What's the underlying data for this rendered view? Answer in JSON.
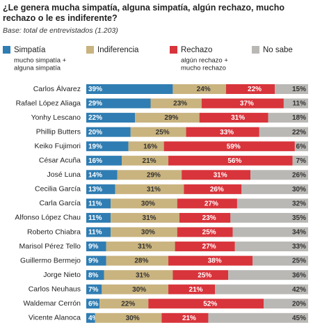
{
  "chart_data": {
    "type": "stacked-bar-horizontal",
    "title": "¿Le genera mucha simpatía, alguna simpatía, algún rechazo, mucho rechazo o le es indiferente?",
    "subtitle": "Base: total de entrevistados (1.203)",
    "categories": [
      "Carlos Álvarez",
      "Rafael López Aliaga",
      "Yonhy Lescano",
      "Phillip Butters",
      "Keiko Fujimori",
      "César Acuña",
      "José Luna",
      "Cecilia García",
      "Carla García",
      "Alfonso López Chau",
      "Roberto Chiabra",
      "Marisol Pérez Tello",
      "Guillermo Bermejo",
      "Jorge Nieto",
      "Carlos Neuhaus",
      "Waldemar Cerrón",
      "Vicente Alanoca"
    ],
    "xlim": [
      0,
      100
    ],
    "series": [
      {
        "name": "Simpatía",
        "note": [
          "mucho simpatía +",
          "alguna simpatía"
        ],
        "color": "#2f7db3",
        "values": [
          39,
          29,
          22,
          20,
          19,
          16,
          14,
          13,
          11,
          11,
          11,
          9,
          9,
          8,
          7,
          6,
          4
        ],
        "value_labels": [
          "39%",
          "29%",
          "22%",
          "20%",
          "19%",
          "16%",
          "14%",
          "13%",
          "11%",
          "11%",
          "11%",
          "9%",
          "9%",
          "8%",
          "7%",
          "6%",
          "4%"
        ]
      },
      {
        "name": "Indiferencia",
        "color": "#c9b37f",
        "values": [
          24,
          23,
          29,
          25,
          16,
          21,
          29,
          31,
          30,
          31,
          30,
          31,
          28,
          31,
          30,
          22,
          30
        ],
        "value_labels": [
          "24%",
          "23%",
          "29%",
          "25%",
          "16%",
          "21%",
          "29%",
          "31%",
          "30%",
          "31%",
          "30%",
          "31%",
          "28%",
          "31%",
          "30%",
          "22%",
          "30%"
        ]
      },
      {
        "name": "Rechazo",
        "note": [
          "algún rechazo +",
          "mucho rechazo"
        ],
        "color": "#d8343b",
        "values": [
          22,
          37,
          31,
          33,
          59,
          56,
          31,
          26,
          27,
          23,
          25,
          27,
          38,
          25,
          21,
          52,
          21
        ],
        "value_labels": [
          "22%",
          "37%",
          "31%",
          "33%",
          "59%",
          "56%",
          "31%",
          "26%",
          "27%",
          "23%",
          "25%",
          "27%",
          "38%",
          "25%",
          "21%",
          "52%",
          "21%"
        ]
      },
      {
        "name": "No sabe",
        "color": "#bab8b5",
        "values": [
          15,
          11,
          18,
          22,
          6,
          7,
          26,
          30,
          32,
          35,
          34,
          33,
          25,
          36,
          42,
          20,
          45
        ],
        "value_labels": [
          "15%",
          "11%",
          "18%",
          "22%",
          "6%",
          "7%",
          "26%",
          "30%",
          "32%",
          "35%",
          "34%",
          "33%",
          "25%",
          "36%",
          "42%",
          "20%",
          "45%"
        ]
      }
    ]
  }
}
